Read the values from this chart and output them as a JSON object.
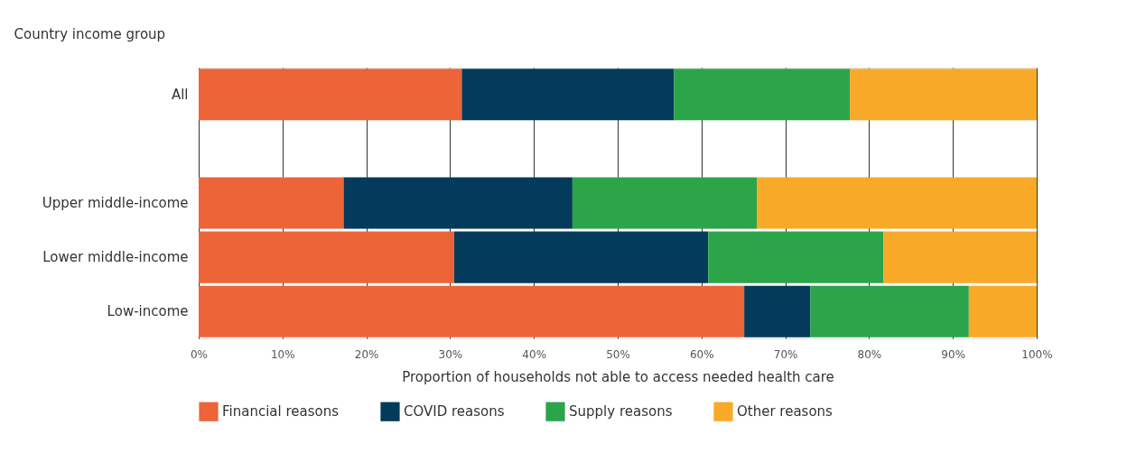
{
  "chart_data": {
    "type": "bar",
    "orientation": "horizontal",
    "stacked": true,
    "ylabel": "Country income group",
    "xlabel": "Proportion of households not able to access needed health care",
    "categories": [
      "All",
      null,
      "Upper middle-income",
      "Lower middle-income",
      "Low-income"
    ],
    "series": [
      {
        "name": "Financial reasons",
        "color": "#ec6438",
        "values": [
          31.4,
          null,
          17.3,
          30.5,
          65.1
        ]
      },
      {
        "name": "COVID reasons",
        "color": "#043a5a",
        "values": [
          25.3,
          null,
          27.3,
          30.3,
          7.9
        ]
      },
      {
        "name": "Supply reasons",
        "color": "#2ba44a",
        "values": [
          21.0,
          null,
          22.0,
          20.9,
          18.9
        ]
      },
      {
        "name": "Other reasons",
        "color": "#f8a928",
        "values": [
          22.3,
          null,
          33.4,
          18.3,
          8.1
        ]
      }
    ],
    "xlim": [
      0,
      100
    ],
    "xticks": [
      {
        "value": 0,
        "label": "0%"
      },
      {
        "value": 10,
        "label": "10%"
      },
      {
        "value": 20,
        "label": "20%"
      },
      {
        "value": 30,
        "label": "30%"
      },
      {
        "value": 40,
        "label": "40%"
      },
      {
        "value": 50,
        "label": "50%"
      },
      {
        "value": 60,
        "label": "60%"
      },
      {
        "value": 70,
        "label": "70%"
      },
      {
        "value": 80,
        "label": "80%"
      },
      {
        "value": 90,
        "label": "90%"
      },
      {
        "value": 100,
        "label": "100%"
      }
    ],
    "grid": "x",
    "legend": "bottom"
  }
}
